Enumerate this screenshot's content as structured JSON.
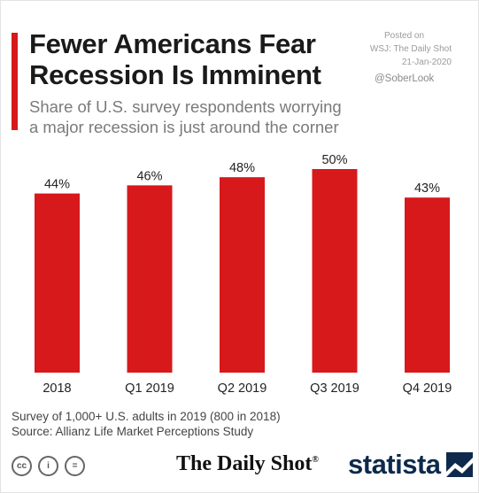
{
  "header": {
    "title_lines": [
      "Fewer Americans Fear",
      "Recession Is Imminent"
    ],
    "subtitle_lines": [
      "Share of U.S. survey respondents worrying",
      "a major recession is just around the corner"
    ]
  },
  "posted": {
    "line1": "Posted on",
    "line2": "WSJ: The Daily Shot",
    "line3": "21-Jan-2020",
    "handle": "@SoberLook"
  },
  "chart_data": {
    "type": "bar",
    "categories": [
      "2018",
      "Q1 2019",
      "Q2 2019",
      "Q3 2019",
      "Q4 2019"
    ],
    "values": [
      44,
      46,
      48,
      50,
      43
    ],
    "data_labels": [
      "44%",
      "46%",
      "48%",
      "50%",
      "43%"
    ],
    "ylim": [
      0,
      50
    ],
    "grid": false,
    "bar_color": "#d7191c"
  },
  "footer": {
    "note_lines": [
      "Survey of 1,000+ U.S. adults in 2019 (800 in 2018)",
      "Source: Allianz Life Market Perceptions Study"
    ],
    "license_icons": [
      "cc-icon",
      "person-attribution-icon",
      "equals-noderivs-icon"
    ],
    "license_glyphs": [
      "cc",
      "i",
      "="
    ],
    "dailyshot_logo": "The Daily Shot",
    "dailyshot_mark": "®",
    "statista_logo": "statista"
  },
  "colors": {
    "accent": "#d7191c",
    "title": "#1a1a1a",
    "subtitle": "#7a7a7a",
    "statista_blue": "#0d2a4c"
  }
}
